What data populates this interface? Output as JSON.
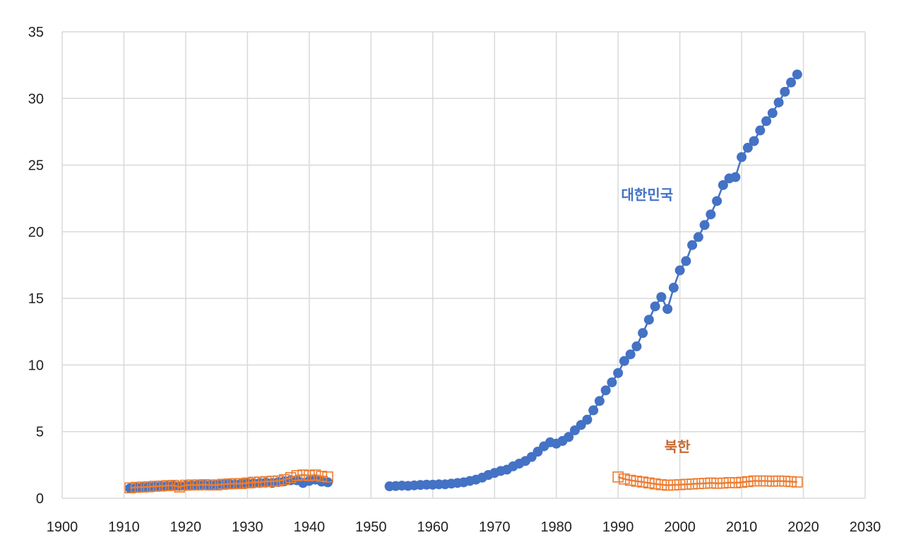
{
  "chart_data": {
    "type": "scatter",
    "title": "",
    "xlabel": "",
    "ylabel": "",
    "xlim": [
      1900,
      2030
    ],
    "ylim": [
      0,
      35
    ],
    "grid": true,
    "legend": "none",
    "x_ticks": [
      "1900",
      "1910",
      "1920",
      "1930",
      "1940",
      "1950",
      "1960",
      "1970",
      "1980",
      "1990",
      "2000",
      "2010",
      "2020",
      "2030"
    ],
    "y_ticks": [
      "0",
      "5",
      "10",
      "15",
      "20",
      "25",
      "30",
      "35"
    ],
    "series": [
      {
        "name": "대한민국",
        "color": "#4472C4",
        "marker": "circle",
        "line": true,
        "segments": [
          [
            [
              1911,
              0.75
            ],
            [
              1912,
              0.8
            ],
            [
              1913,
              0.82
            ],
            [
              1914,
              0.85
            ],
            [
              1915,
              0.88
            ],
            [
              1916,
              0.9
            ],
            [
              1917,
              0.92
            ],
            [
              1918,
              0.95
            ],
            [
              1919,
              0.93
            ],
            [
              1920,
              0.95
            ],
            [
              1921,
              0.97
            ],
            [
              1922,
              1.0
            ],
            [
              1923,
              1.0
            ],
            [
              1924,
              0.98
            ],
            [
              1925,
              1.02
            ],
            [
              1926,
              1.05
            ],
            [
              1927,
              1.08
            ],
            [
              1928,
              1.05
            ],
            [
              1929,
              1.1
            ],
            [
              1930,
              1.12
            ],
            [
              1931,
              1.12
            ],
            [
              1932,
              1.15
            ],
            [
              1933,
              1.18
            ],
            [
              1934,
              1.15
            ],
            [
              1935,
              1.22
            ],
            [
              1936,
              1.28
            ],
            [
              1937,
              1.35
            ],
            [
              1938,
              1.35
            ],
            [
              1939,
              1.15
            ],
            [
              1940,
              1.3
            ],
            [
              1941,
              1.4
            ],
            [
              1942,
              1.25
            ],
            [
              1943,
              1.2
            ]
          ],
          [
            [
              1953,
              0.9
            ],
            [
              1954,
              0.92
            ],
            [
              1955,
              0.95
            ],
            [
              1956,
              0.93
            ],
            [
              1957,
              0.97
            ],
            [
              1958,
              1.0
            ],
            [
              1959,
              1.02
            ],
            [
              1960,
              1.02
            ],
            [
              1961,
              1.05
            ],
            [
              1962,
              1.05
            ],
            [
              1963,
              1.1
            ],
            [
              1964,
              1.15
            ],
            [
              1965,
              1.2
            ],
            [
              1966,
              1.3
            ],
            [
              1967,
              1.4
            ],
            [
              1968,
              1.55
            ],
            [
              1969,
              1.75
            ],
            [
              1970,
              1.9
            ],
            [
              1971,
              2.05
            ],
            [
              1972,
              2.15
            ],
            [
              1973,
              2.4
            ],
            [
              1974,
              2.6
            ],
            [
              1975,
              2.8
            ],
            [
              1976,
              3.1
            ],
            [
              1977,
              3.5
            ],
            [
              1978,
              3.9
            ],
            [
              1979,
              4.2
            ],
            [
              1980,
              4.1
            ],
            [
              1981,
              4.3
            ],
            [
              1982,
              4.6
            ],
            [
              1983,
              5.1
            ],
            [
              1984,
              5.5
            ],
            [
              1985,
              5.9
            ],
            [
              1986,
              6.6
            ],
            [
              1987,
              7.3
            ],
            [
              1988,
              8.1
            ],
            [
              1989,
              8.7
            ],
            [
              1990,
              9.4
            ],
            [
              1991,
              10.3
            ],
            [
              1992,
              10.8
            ],
            [
              1993,
              11.4
            ],
            [
              1994,
              12.4
            ],
            [
              1995,
              13.4
            ],
            [
              1996,
              14.4
            ],
            [
              1997,
              15.1
            ],
            [
              1998,
              14.2
            ],
            [
              1999,
              15.8
            ],
            [
              2000,
              17.1
            ],
            [
              2001,
              17.8
            ],
            [
              2002,
              19.0
            ],
            [
              2003,
              19.6
            ],
            [
              2004,
              20.5
            ],
            [
              2005,
              21.3
            ],
            [
              2006,
              22.3
            ],
            [
              2007,
              23.5
            ],
            [
              2008,
              24.0
            ],
            [
              2009,
              24.1
            ],
            [
              2010,
              25.6
            ],
            [
              2011,
              26.3
            ],
            [
              2012,
              26.8
            ],
            [
              2013,
              27.6
            ],
            [
              2014,
              28.3
            ],
            [
              2015,
              28.9
            ],
            [
              2016,
              29.7
            ],
            [
              2017,
              30.5
            ],
            [
              2018,
              31.2
            ],
            [
              2019,
              31.8
            ]
          ]
        ]
      },
      {
        "name": "북한",
        "color": "#ED7D31",
        "marker": "square-open",
        "line": true,
        "segments": [
          [
            [
              1911,
              0.78
            ],
            [
              1912,
              0.82
            ],
            [
              1913,
              0.84
            ],
            [
              1914,
              0.86
            ],
            [
              1915,
              0.9
            ],
            [
              1916,
              0.92
            ],
            [
              1917,
              0.95
            ],
            [
              1918,
              0.97
            ],
            [
              1919,
              0.85
            ],
            [
              1920,
              0.98
            ],
            [
              1921,
              1.0
            ],
            [
              1922,
              1.0
            ],
            [
              1923,
              1.02
            ],
            [
              1924,
              1.0
            ],
            [
              1925,
              1.0
            ],
            [
              1926,
              1.05
            ],
            [
              1927,
              1.08
            ],
            [
              1928,
              1.1
            ],
            [
              1929,
              1.1
            ],
            [
              1930,
              1.15
            ],
            [
              1931,
              1.2
            ],
            [
              1932,
              1.22
            ],
            [
              1933,
              1.25
            ],
            [
              1934,
              1.28
            ],
            [
              1935,
              1.3
            ],
            [
              1936,
              1.4
            ],
            [
              1937,
              1.55
            ],
            [
              1938,
              1.7
            ],
            [
              1939,
              1.75
            ],
            [
              1940,
              1.7
            ],
            [
              1941,
              1.75
            ],
            [
              1942,
              1.65
            ],
            [
              1943,
              1.6
            ]
          ],
          [
            [
              1990,
              1.6
            ],
            [
              1991,
              1.45
            ],
            [
              1992,
              1.35
            ],
            [
              1993,
              1.28
            ],
            [
              1994,
              1.22
            ],
            [
              1995,
              1.15
            ],
            [
              1996,
              1.08
            ],
            [
              1997,
              1.02
            ],
            [
              1998,
              0.98
            ],
            [
              1999,
              1.0
            ],
            [
              2000,
              1.02
            ],
            [
              2001,
              1.05
            ],
            [
              2002,
              1.07
            ],
            [
              2003,
              1.1
            ],
            [
              2004,
              1.12
            ],
            [
              2005,
              1.15
            ],
            [
              2006,
              1.12
            ],
            [
              2007,
              1.14
            ],
            [
              2008,
              1.18
            ],
            [
              2009,
              1.16
            ],
            [
              2010,
              1.2
            ],
            [
              2011,
              1.25
            ],
            [
              2012,
              1.3
            ],
            [
              2013,
              1.3
            ],
            [
              2014,
              1.3
            ],
            [
              2015,
              1.28
            ],
            [
              2016,
              1.3
            ],
            [
              2017,
              1.28
            ],
            [
              2018,
              1.25
            ],
            [
              2019,
              1.22
            ]
          ]
        ]
      }
    ],
    "annotations": [
      {
        "text": "대한민국",
        "color": "#4472C4",
        "x": 1990.5,
        "y": 22.4
      },
      {
        "text": "북한",
        "color": "#C46A34",
        "x": 1997.5,
        "y": 3.5
      }
    ]
  }
}
